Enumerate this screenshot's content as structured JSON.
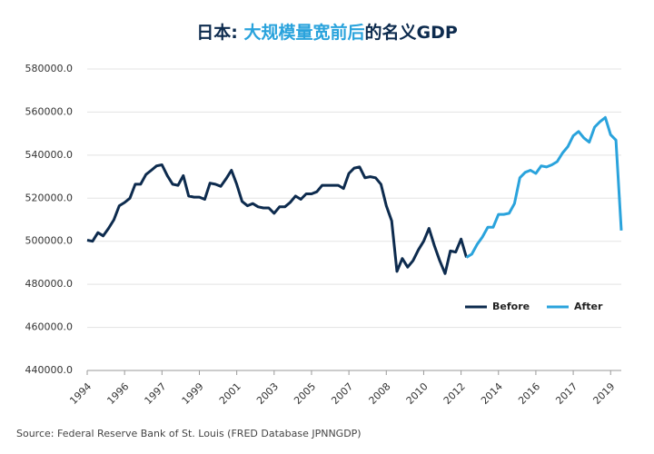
{
  "chart_data": {
    "type": "line",
    "title": [
      "日本: ",
      "大规模量宽前后",
      "的名义GDP"
    ],
    "title_colors": [
      "#0d2b4e",
      "#2aa3dc",
      "#0d2b4e"
    ],
    "source": "Source: Federal Reserve Bank of St. Louis (FRED Database JPNNGDP)",
    "categories": [
      "1994",
      null,
      null,
      null,
      null,
      null,
      null,
      "1996",
      null,
      null,
      null,
      null,
      null,
      null,
      "1997",
      null,
      null,
      null,
      null,
      null,
      null,
      "1999",
      null,
      null,
      null,
      null,
      null,
      null,
      "2001",
      null,
      null,
      null,
      null,
      null,
      null,
      "2003",
      null,
      null,
      null,
      null,
      null,
      null,
      "2005",
      null,
      null,
      null,
      null,
      null,
      null,
      "2007",
      null,
      null,
      null,
      null,
      null,
      null,
      "2008",
      null,
      null,
      null,
      null,
      null,
      null,
      "2010",
      null,
      null,
      null,
      null,
      null,
      null,
      "2012",
      null,
      null,
      null,
      null,
      null,
      null,
      "2014",
      null,
      null,
      null,
      null,
      null,
      null,
      "2016",
      null,
      null,
      null,
      null,
      null,
      null,
      "2017",
      null,
      null,
      null,
      null,
      null,
      null,
      "2019",
      null,
      null
    ],
    "series": [
      {
        "name": "Before",
        "color": "#0d2b4e",
        "values": [
          500500,
          500000,
          504000,
          502500,
          506000,
          510000,
          516500,
          518000,
          520000,
          526500,
          526500,
          531000,
          533000,
          535000,
          535500,
          530500,
          526500,
          526000,
          530500,
          521000,
          520500,
          520500,
          519500,
          527000,
          526500,
          525500,
          529000,
          533000,
          526500,
          518500,
          516500,
          517500,
          516000,
          515500,
          515500,
          513000,
          516000,
          516000,
          518000,
          521000,
          519500,
          522000,
          522000,
          523000,
          526000,
          526000,
          526000,
          526000,
          524500,
          531500,
          534000,
          534500,
          529500,
          530000,
          529500,
          526500,
          516500,
          509500,
          486000,
          492000,
          488000,
          491000,
          496000,
          500000,
          506000,
          498000,
          491000,
          485000,
          495500,
          495000,
          501000,
          492500,
          null,
          null,
          null,
          null,
          null,
          null,
          null,
          null,
          null,
          null,
          null,
          null,
          null,
          null,
          null,
          null,
          null,
          null,
          null,
          null,
          null,
          null,
          null,
          null,
          null,
          null,
          null,
          null,
          null
        ]
      },
      {
        "name": "After",
        "color": "#2aa3dc",
        "values": [
          null,
          null,
          null,
          null,
          null,
          null,
          null,
          null,
          null,
          null,
          null,
          null,
          null,
          null,
          null,
          null,
          null,
          null,
          null,
          null,
          null,
          null,
          null,
          null,
          null,
          null,
          null,
          null,
          null,
          null,
          null,
          null,
          null,
          null,
          null,
          null,
          null,
          null,
          null,
          null,
          null,
          null,
          null,
          null,
          null,
          null,
          null,
          null,
          null,
          null,
          null,
          null,
          null,
          null,
          null,
          null,
          null,
          null,
          null,
          null,
          null,
          null,
          null,
          null,
          null,
          null,
          null,
          null,
          null,
          null,
          null,
          492500,
          494000,
          498500,
          502000,
          506500,
          506500,
          512500,
          512500,
          513000,
          517500,
          529500,
          532000,
          533000,
          531500,
          535000,
          534500,
          535500,
          537000,
          541000,
          544000,
          549000,
          551000,
          548000,
          546000,
          553000,
          555500,
          557500,
          549500,
          547000,
          505000
        ]
      }
    ],
    "ylim": [
      440000,
      580000
    ],
    "yticks": [
      {
        "value": 440000,
        "label": "440000.0"
      },
      {
        "value": 460000,
        "label": "460000.0"
      },
      {
        "value": 480000,
        "label": "480000.0"
      },
      {
        "value": 500000,
        "label": "500000.0"
      },
      {
        "value": 520000,
        "label": "520000.0"
      },
      {
        "value": 540000,
        "label": "540000.0"
      },
      {
        "value": 560000,
        "label": "560000.0"
      },
      {
        "value": 580000,
        "label": "580000.0"
      }
    ],
    "grid": true,
    "legend": "lower right"
  }
}
